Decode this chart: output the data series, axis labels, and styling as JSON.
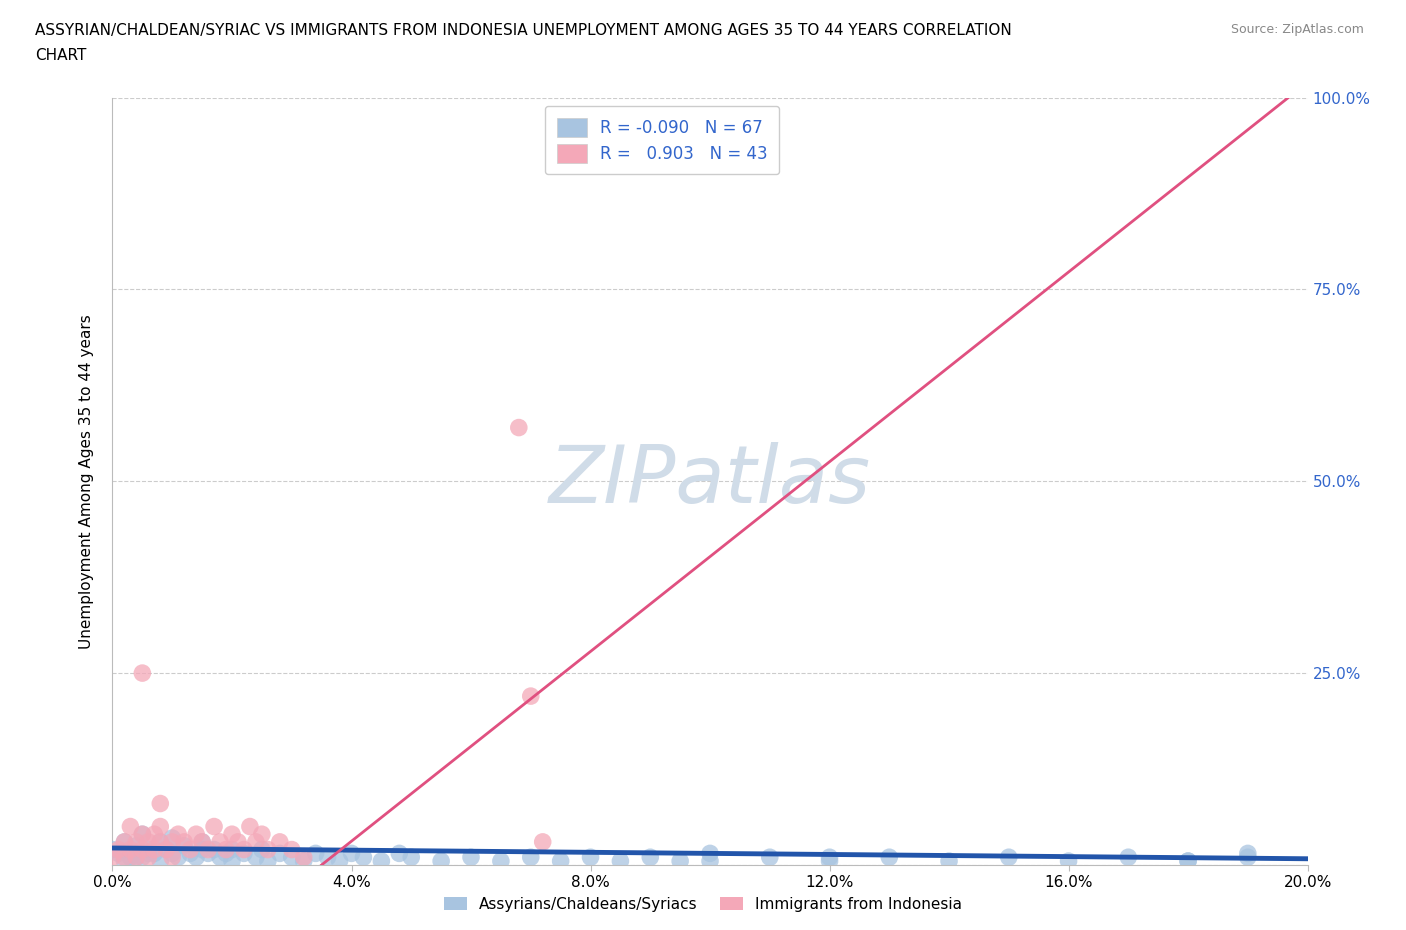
{
  "title": "ASSYRIAN/CHALDEAN/SYRIAC VS IMMIGRANTS FROM INDONESIA UNEMPLOYMENT AMONG AGES 35 TO 44 YEARS CORRELATION\nCHART",
  "source_text": "Source: ZipAtlas.com",
  "ylabel": "Unemployment Among Ages 35 to 44 years",
  "xlim": [
    0.0,
    0.2
  ],
  "ylim": [
    0.0,
    1.0
  ],
  "xtick_positions": [
    0.0,
    0.04,
    0.08,
    0.12,
    0.16,
    0.2
  ],
  "xtick_labels": [
    "0.0%",
    "4.0%",
    "8.0%",
    "12.0%",
    "16.0%",
    "20.0%"
  ],
  "ytick_positions": [
    0.0,
    0.25,
    0.5,
    0.75,
    1.0
  ],
  "ytick_labels_right": [
    "",
    "25.0%",
    "50.0%",
    "75.0%",
    "100.0%"
  ],
  "blue_R": -0.09,
  "blue_N": 67,
  "pink_R": 0.903,
  "pink_N": 43,
  "blue_color": "#a8c4e0",
  "pink_color": "#f4a8b8",
  "blue_line_color": "#2255aa",
  "pink_line_color": "#e05080",
  "grid_color": "#cccccc",
  "legend_text_color": "#3366cc",
  "watermark_color": "#d0dce8",
  "blue_line_x": [
    0.0,
    0.2
  ],
  "blue_line_y": [
    0.022,
    0.008
  ],
  "pink_line_x": [
    0.035,
    0.2
  ],
  "pink_line_y": [
    0.0,
    1.02
  ],
  "blue_scatter_x": [
    0.0,
    0.001,
    0.002,
    0.003,
    0.004,
    0.005,
    0.005,
    0.006,
    0.007,
    0.008,
    0.009,
    0.01,
    0.01,
    0.011,
    0.012,
    0.013,
    0.014,
    0.015,
    0.015,
    0.016,
    0.017,
    0.018,
    0.019,
    0.02,
    0.02,
    0.022,
    0.024,
    0.025,
    0.026,
    0.028,
    0.03,
    0.032,
    0.034,
    0.036,
    0.038,
    0.04,
    0.042,
    0.045,
    0.048,
    0.05,
    0.055,
    0.06,
    0.065,
    0.07,
    0.075,
    0.08,
    0.085,
    0.09,
    0.095,
    0.1,
    0.11,
    0.12,
    0.13,
    0.14,
    0.15,
    0.16,
    0.17,
    0.18,
    0.19,
    0.19,
    0.002,
    0.004,
    0.006,
    0.008,
    0.1,
    0.12,
    0.18
  ],
  "blue_scatter_y": [
    0.02,
    0.015,
    0.03,
    0.01,
    0.025,
    0.01,
    0.04,
    0.02,
    0.015,
    0.03,
    0.02,
    0.015,
    0.035,
    0.01,
    0.025,
    0.015,
    0.01,
    0.02,
    0.03,
    0.015,
    0.02,
    0.01,
    0.015,
    0.02,
    0.005,
    0.015,
    0.01,
    0.02,
    0.005,
    0.015,
    0.01,
    0.005,
    0.015,
    0.01,
    0.005,
    0.015,
    0.01,
    0.005,
    0.015,
    0.01,
    0.005,
    0.01,
    0.005,
    0.01,
    0.005,
    0.01,
    0.005,
    0.01,
    0.005,
    0.015,
    0.01,
    0.005,
    0.01,
    0.005,
    0.01,
    0.005,
    0.01,
    0.005,
    0.01,
    0.015,
    0.005,
    0.01,
    0.015,
    0.005,
    0.005,
    0.01,
    0.005
  ],
  "pink_scatter_x": [
    0.0,
    0.001,
    0.002,
    0.002,
    0.003,
    0.003,
    0.004,
    0.004,
    0.005,
    0.005,
    0.006,
    0.006,
    0.007,
    0.007,
    0.008,
    0.008,
    0.009,
    0.01,
    0.01,
    0.011,
    0.012,
    0.013,
    0.014,
    0.015,
    0.016,
    0.017,
    0.018,
    0.019,
    0.02,
    0.021,
    0.022,
    0.023,
    0.024,
    0.025,
    0.026,
    0.028,
    0.03,
    0.032,
    0.068,
    0.07,
    0.072,
    0.005,
    0.008
  ],
  "pink_scatter_y": [
    0.01,
    0.02,
    0.01,
    0.03,
    0.02,
    0.05,
    0.01,
    0.03,
    0.02,
    0.04,
    0.03,
    0.01,
    0.04,
    0.02,
    0.03,
    0.05,
    0.02,
    0.03,
    0.01,
    0.04,
    0.03,
    0.02,
    0.04,
    0.03,
    0.02,
    0.05,
    0.03,
    0.02,
    0.04,
    0.03,
    0.02,
    0.05,
    0.03,
    0.04,
    0.02,
    0.03,
    0.02,
    0.01,
    0.57,
    0.22,
    0.03,
    0.25,
    0.08
  ]
}
